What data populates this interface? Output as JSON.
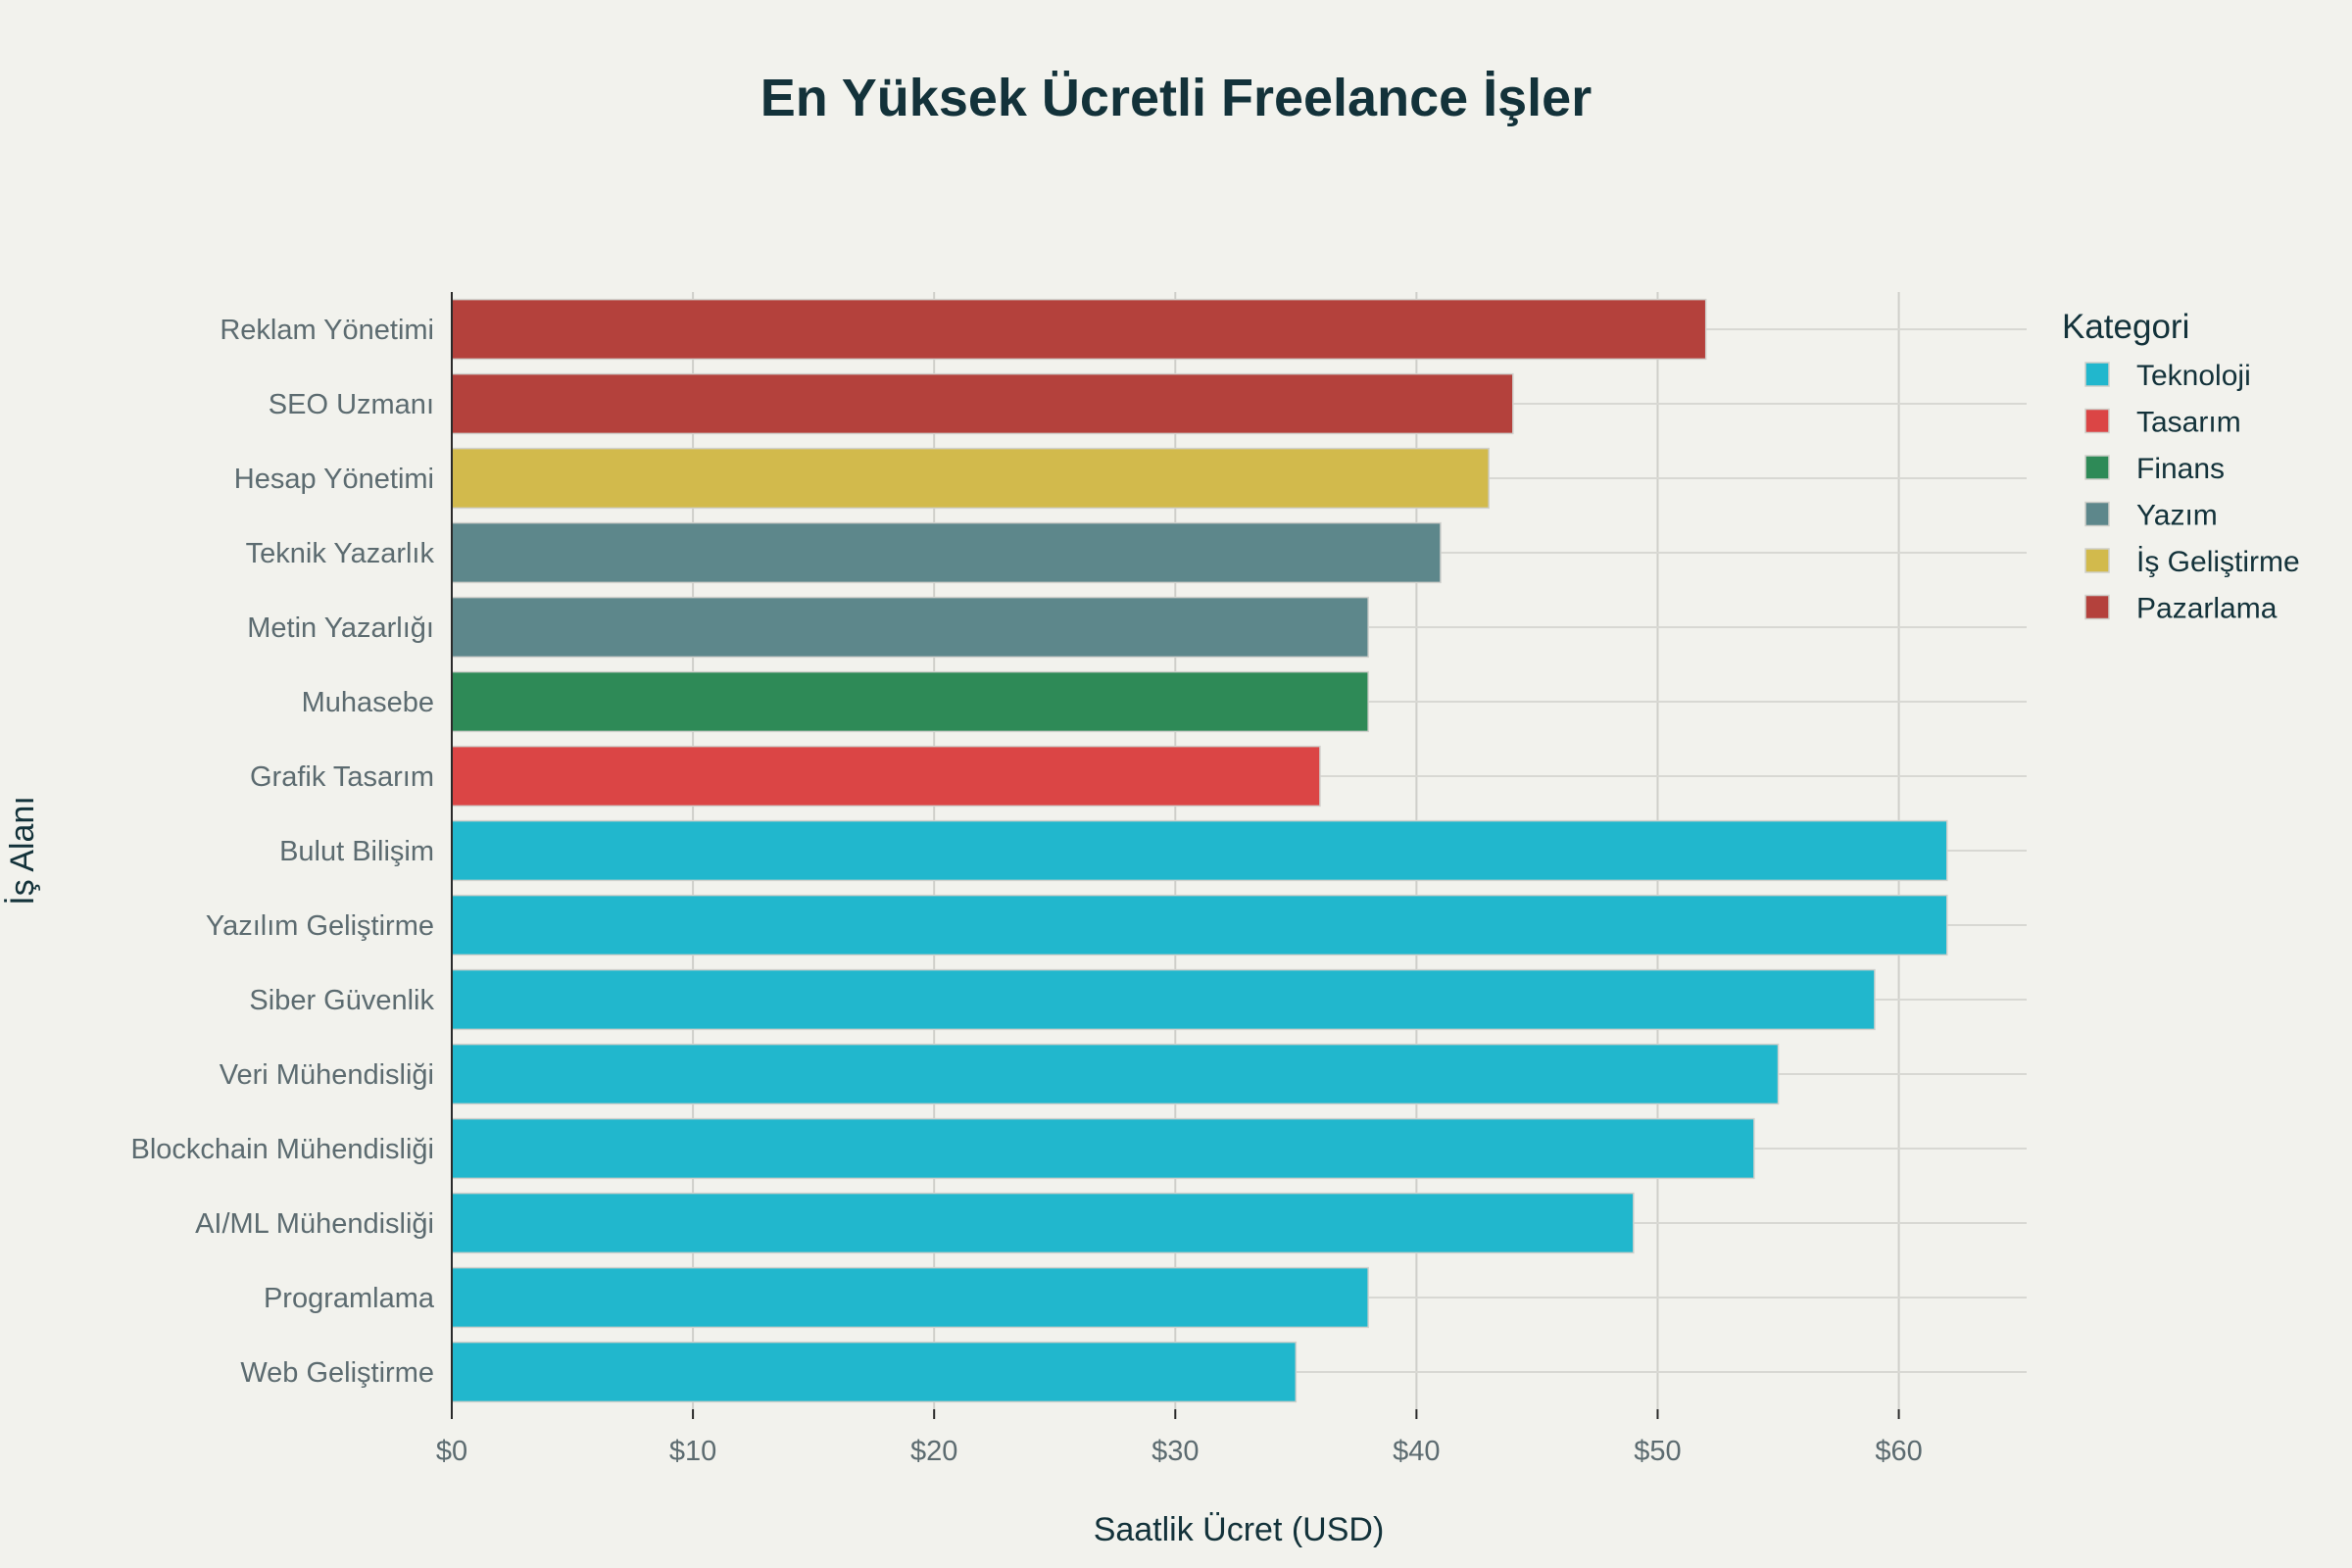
{
  "chart_data": {
    "type": "bar",
    "orientation": "horizontal",
    "title": "En Yüksek Ücretli Freelance İşler",
    "xlabel": "Saatlik Ücret (USD)",
    "ylabel": "İş Alanı",
    "xlim": [
      0,
      65.3
    ],
    "x_ticks": [
      "$0",
      "$10",
      "$20",
      "$30",
      "$40",
      "$50",
      "$60"
    ],
    "x_tick_values": [
      0,
      10,
      20,
      30,
      40,
      50,
      60
    ],
    "grid": true,
    "legend": {
      "title": "Kategori",
      "placement": "top-right",
      "entries": [
        {
          "name": "Teknoloji",
          "color": "#21b7cd"
        },
        {
          "name": "Tasarım",
          "color": "#db4545"
        },
        {
          "name": "Finans",
          "color": "#2e8a57"
        },
        {
          "name": "Yazım",
          "color": "#5d878b"
        },
        {
          "name": "İş Geliştirme",
          "color": "#d2ba4c"
        },
        {
          "name": "Pazarlama",
          "color": "#b4413c"
        }
      ]
    },
    "bars": [
      {
        "label": "Reklam Yönetimi",
        "value": 52,
        "category": "Pazarlama"
      },
      {
        "label": "SEO Uzmanı",
        "value": 44,
        "category": "Pazarlama"
      },
      {
        "label": "Hesap Yönetimi",
        "value": 43,
        "category": "İş Geliştirme"
      },
      {
        "label": "Teknik Yazarlık",
        "value": 41,
        "category": "Yazım"
      },
      {
        "label": "Metin Yazarlığı",
        "value": 38,
        "category": "Yazım"
      },
      {
        "label": "Muhasebe",
        "value": 38,
        "category": "Finans"
      },
      {
        "label": "Grafik Tasarım",
        "value": 36,
        "category": "Tasarım"
      },
      {
        "label": "Bulut Bilişim",
        "value": 62,
        "category": "Teknoloji"
      },
      {
        "label": "Yazılım Geliştirme",
        "value": 62,
        "category": "Teknoloji"
      },
      {
        "label": "Siber Güvenlik",
        "value": 59,
        "category": "Teknoloji"
      },
      {
        "label": "Veri Mühendisliği",
        "value": 55,
        "category": "Teknoloji"
      },
      {
        "label": "Blockchain Mühendisliği",
        "value": 54,
        "category": "Teknoloji"
      },
      {
        "label": "AI/ML Mühendisliği",
        "value": 49,
        "category": "Teknoloji"
      },
      {
        "label": "Programlama",
        "value": 38,
        "category": "Teknoloji"
      },
      {
        "label": "Web Geliştirme",
        "value": 35,
        "category": "Teknoloji"
      }
    ]
  }
}
